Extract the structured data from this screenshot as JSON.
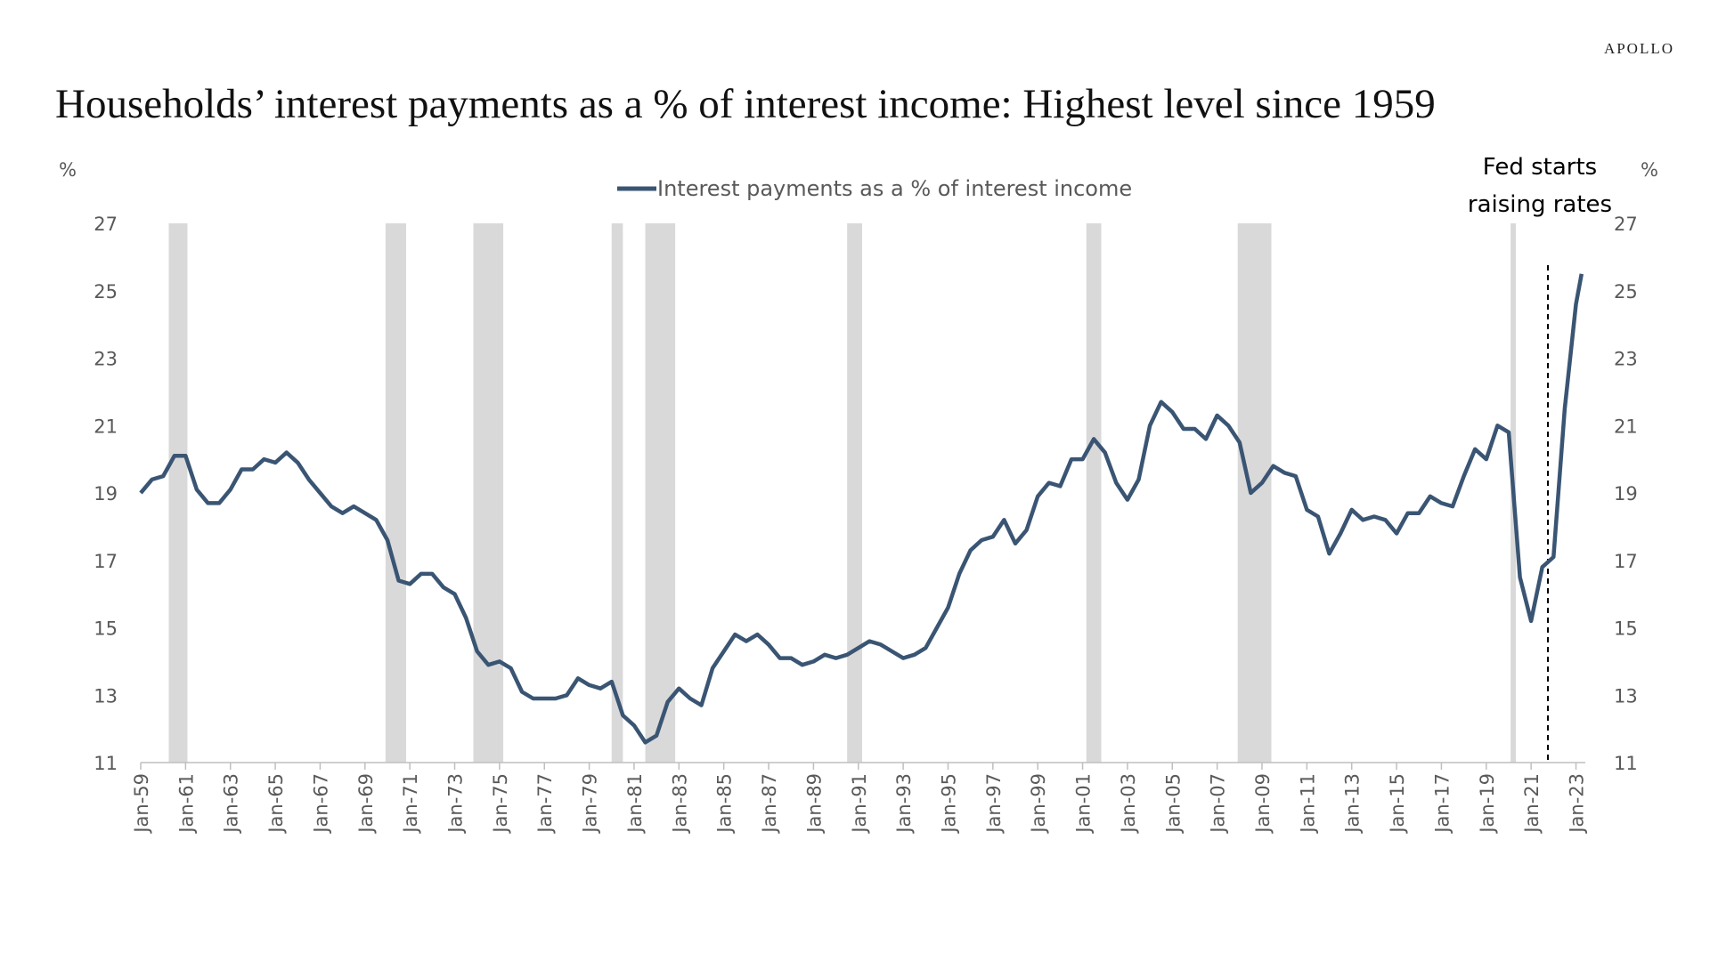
{
  "chart_data": {
    "type": "line",
    "brand": "APOLLO",
    "title": "Households’ interest payments as a % of interest income: Highest level since 1959",
    "y_label": "%",
    "y2_label": "%",
    "series": [
      {
        "name": "Interest payments as a % of interest income",
        "color": "#3a5573",
        "values": [
          19.0,
          19.4,
          19.5,
          20.1,
          20.1,
          19.1,
          18.7,
          18.7,
          19.1,
          19.7,
          19.7,
          20.0,
          19.9,
          20.2,
          19.9,
          19.4,
          19.0,
          18.6,
          18.4,
          18.6,
          18.4,
          18.2,
          17.6,
          16.4,
          16.3,
          16.6,
          16.6,
          16.2,
          16.0,
          15.3,
          14.3,
          13.9,
          14.0,
          13.8,
          13.1,
          12.9,
          12.9,
          12.9,
          13.0,
          13.5,
          13.3,
          13.2,
          13.4,
          12.4,
          12.1,
          11.6,
          11.8,
          12.8,
          13.2,
          12.9,
          12.7,
          13.8,
          14.3,
          14.8,
          14.6,
          14.8,
          14.5,
          14.1,
          14.1,
          13.9,
          14.0,
          14.2,
          14.1,
          14.2,
          14.4,
          14.6,
          14.5,
          14.3,
          14.1,
          14.2,
          14.4,
          15.0,
          15.6,
          16.6,
          17.3,
          17.6,
          17.7,
          18.2,
          17.5,
          17.9,
          18.9,
          19.3,
          19.2,
          20.0,
          20.0,
          20.6,
          20.2,
          19.3,
          18.8,
          19.4,
          21.0,
          21.7,
          21.4,
          20.9,
          20.9,
          20.6,
          21.3,
          21.0,
          20.5,
          19.0,
          19.3,
          19.8,
          19.6,
          19.5,
          18.5,
          18.3,
          17.2,
          17.8,
          18.5,
          18.2,
          18.3,
          18.2,
          17.8,
          18.4,
          18.4,
          18.9,
          18.7,
          18.6,
          19.5,
          20.3,
          20.0,
          21.0,
          20.8,
          16.5,
          15.2,
          16.8,
          17.1,
          21.5,
          24.6,
          25.5
        ]
      }
    ],
    "x": [
      "Jan-59",
      "Jul-59",
      "Jan-60",
      "Jul-60",
      "Jan-61",
      "Jul-61",
      "Jan-62",
      "Jul-62",
      "Jan-63",
      "Jul-63",
      "Jan-64",
      "Jul-64",
      "Jan-65",
      "Jul-65",
      "Jan-66",
      "Jul-66",
      "Jan-67",
      "Jul-67",
      "Jan-68",
      "Jul-68",
      "Jan-69",
      "Jul-69",
      "Jan-70",
      "Jul-70",
      "Jan-71",
      "Jul-71",
      "Jan-72",
      "Jul-72",
      "Jan-73",
      "Jul-73",
      "Jan-74",
      "Jul-74",
      "Jan-75",
      "Jul-75",
      "Jan-76",
      "Jul-76",
      "Jan-77",
      "Jul-77",
      "Jan-78",
      "Jul-78",
      "Jan-79",
      "Jul-79",
      "Jan-80",
      "Jul-80",
      "Jan-81",
      "Jul-81",
      "Jan-82",
      "Jul-82",
      "Jan-83",
      "Jul-83",
      "Jan-84",
      "Jul-84",
      "Jan-85",
      "Jul-85",
      "Jan-86",
      "Jul-86",
      "Jan-87",
      "Jul-87",
      "Jan-88",
      "Jul-88",
      "Jan-89",
      "Jul-89",
      "Jan-90",
      "Jul-90",
      "Jan-91",
      "Jul-91",
      "Jan-92",
      "Jul-92",
      "Jan-93",
      "Jul-93",
      "Jan-94",
      "Jul-94",
      "Jan-95",
      "Jul-95",
      "Jan-96",
      "Jul-96",
      "Jan-97",
      "Jul-97",
      "Jan-98",
      "Jul-98",
      "Jan-99",
      "Jul-99",
      "Jan-00",
      "Jul-00",
      "Jan-01",
      "Jul-01",
      "Jan-02",
      "Jul-02",
      "Jan-03",
      "Jul-03",
      "Jan-04",
      "Jul-04",
      "Jan-05",
      "Jul-05",
      "Jan-06",
      "Jul-06",
      "Jan-07",
      "Jul-07",
      "Jan-08",
      "Jul-08",
      "Jan-09",
      "Jul-09",
      "Jan-10",
      "Jul-10",
      "Jan-11",
      "Jul-11",
      "Jan-12",
      "Jul-12",
      "Jan-13",
      "Jul-13",
      "Jan-14",
      "Jul-14",
      "Jan-15",
      "Jul-15",
      "Jan-16",
      "Jul-16",
      "Jan-17",
      "Jul-17",
      "Jan-18",
      "Jul-18",
      "Jan-19",
      "Jul-19",
      "Jan-20",
      "Jul-20",
      "Jan-21",
      "Jul-21",
      "Jan-22",
      "Jul-22",
      "Jan-23",
      "Apr-23"
    ],
    "xlim": [
      "Jan-59",
      "Jun-23"
    ],
    "xticks": [
      "Jan-59",
      "Jan-61",
      "Jan-63",
      "Jan-65",
      "Jan-67",
      "Jan-69",
      "Jan-71",
      "Jan-73",
      "Jan-75",
      "Jan-77",
      "Jan-79",
      "Jan-81",
      "Jan-83",
      "Jan-85",
      "Jan-87",
      "Jan-89",
      "Jan-91",
      "Jan-93",
      "Jan-95",
      "Jan-97",
      "Jan-99",
      "Jan-01",
      "Jan-03",
      "Jan-05",
      "Jan-07",
      "Jan-09",
      "Jan-11",
      "Jan-13",
      "Jan-15",
      "Jan-17",
      "Jan-19",
      "Jan-21",
      "Jan-23"
    ],
    "ylim": [
      11,
      27
    ],
    "yticks": [
      11,
      13,
      15,
      17,
      19,
      21,
      23,
      25,
      27
    ],
    "y2lim": [
      11,
      27
    ],
    "y2ticks": [
      11,
      13,
      15,
      17,
      19,
      21,
      23,
      25,
      27
    ],
    "recessions": [
      {
        "start": "Apr-60",
        "end": "Feb-61"
      },
      {
        "start": "Dec-69",
        "end": "Nov-70"
      },
      {
        "start": "Nov-73",
        "end": "Mar-75"
      },
      {
        "start": "Jan-80",
        "end": "Jul-80"
      },
      {
        "start": "Jul-81",
        "end": "Nov-82"
      },
      {
        "start": "Jul-90",
        "end": "Mar-91"
      },
      {
        "start": "Mar-01",
        "end": "Nov-01"
      },
      {
        "start": "Dec-07",
        "end": "Jun-09"
      },
      {
        "start": "Feb-20",
        "end": "Apr-20"
      }
    ],
    "recession_color": "#d9d9d9",
    "annotation": {
      "text": [
        "Fed starts",
        "raising rates"
      ],
      "x": "Oct-21"
    },
    "legend": "top"
  }
}
